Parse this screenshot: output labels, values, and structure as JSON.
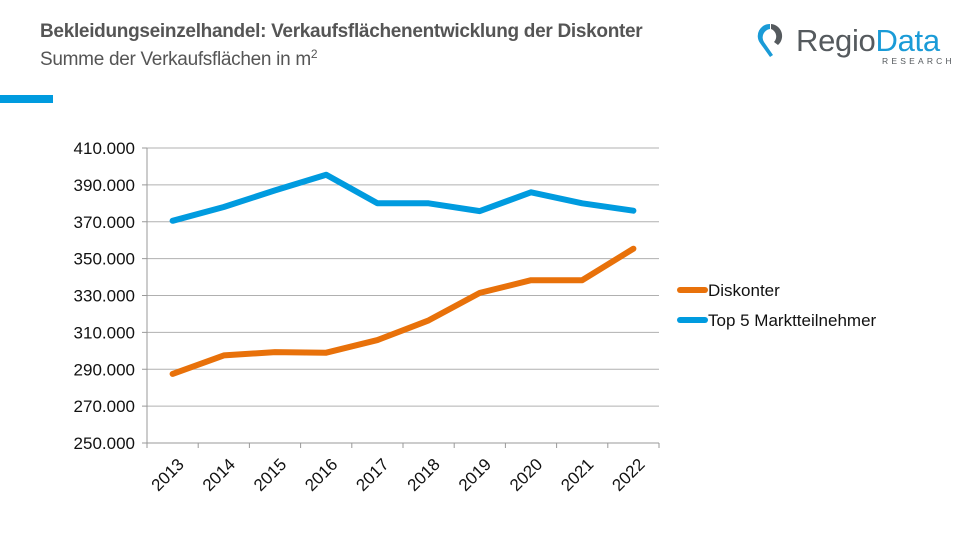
{
  "header": {
    "title": "Bekleidungseinzelhandel: Verkaufsflächenentwicklung der Diskonter",
    "subtitle": "Summe der Verkaufsflächen in m",
    "subtitle_superscript": "2",
    "accent_color": "#009bdf"
  },
  "logo": {
    "icon": "map-pin-logo-icon",
    "text_part1": "Regio",
    "text_part2": "Data",
    "tagline": "RESEARCH",
    "color_primary": "#1a9bd7",
    "color_secondary": "#555a5e"
  },
  "chart_data": {
    "type": "line",
    "title": "Bekleidungseinzelhandel: Verkaufsflächenentwicklung der Diskonter",
    "subtitle": "Summe der Verkaufsflächen in m²",
    "xlabel": "",
    "ylabel": "",
    "categories": [
      "2013",
      "2014",
      "2015",
      "2016",
      "2017",
      "2018",
      "2019",
      "2020",
      "2021",
      "2022"
    ],
    "ylim": [
      250000,
      410000
    ],
    "yticks": [
      250000,
      270000,
      290000,
      310000,
      330000,
      350000,
      370000,
      390000,
      410000
    ],
    "ytick_labels": [
      "250.000",
      "270.000",
      "290.000",
      "310.000",
      "330.000",
      "350.000",
      "370.000",
      "390.000",
      "410.000"
    ],
    "grid": true,
    "legend_position": "right",
    "series": [
      {
        "name": "Diskonter",
        "color": "#e8710a",
        "values": [
          287500,
          297500,
          299300,
          299000,
          305800,
          316500,
          331400,
          338300,
          338300,
          355400
        ]
      },
      {
        "name": "Top 5 Marktteilnehmer",
        "color": "#009bdf",
        "values": [
          370500,
          378000,
          387000,
          395500,
          380000,
          380000,
          375800,
          386000,
          380000,
          376000
        ]
      }
    ]
  }
}
